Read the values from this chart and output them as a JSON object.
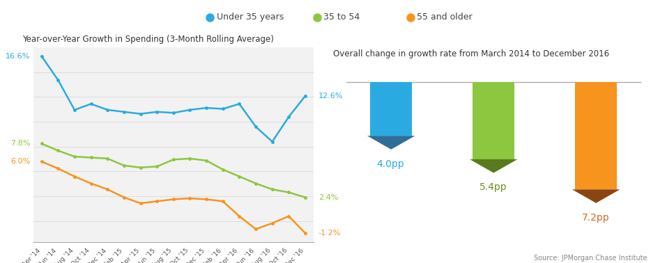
{
  "title_left": "Year-over-Year Growth in Spending (3-Month Rolling Average)",
  "title_right": "Overall change in growth rate from March 2014 to December 2016",
  "source": "Source: JPMorgan Chase Institute",
  "legend_labels": [
    "Under 35 years",
    "35 to 54",
    "55 and older"
  ],
  "legend_colors": [
    "#29ABE2",
    "#8DC63F",
    "#F7941D"
  ],
  "line_colors": [
    "#29ABE2",
    "#8DC63F",
    "#F7941D"
  ],
  "x_labels": [
    "Apr '14",
    "Jun '14",
    "Aug '14",
    "Oct '14",
    "Dec '14",
    "Feb '15",
    "Apr '15",
    "Jun '15",
    "Aug '15",
    "Oct '15",
    "Dec '15",
    "Feb '16",
    "Apr '16",
    "Jun '16",
    "Aug '16",
    "Oct '16",
    "Dec '16"
  ],
  "blue_data": [
    16.6,
    14.2,
    11.2,
    11.8,
    11.2,
    11.0,
    10.8,
    11.0,
    10.9,
    11.2,
    11.4,
    11.3,
    11.8,
    9.5,
    8.0,
    10.5,
    12.6
  ],
  "green_data": [
    7.8,
    7.1,
    6.5,
    6.4,
    6.3,
    5.6,
    5.4,
    5.5,
    6.2,
    6.3,
    6.1,
    5.2,
    4.5,
    3.8,
    3.2,
    2.9,
    2.4
  ],
  "orange_data": [
    6.0,
    5.3,
    4.5,
    3.8,
    3.2,
    2.4,
    1.8,
    2.0,
    2.2,
    2.3,
    2.2,
    2.0,
    0.5,
    -0.8,
    -0.2,
    0.5,
    -1.2
  ],
  "start_labels": [
    "16.6%",
    "7.8%",
    "6.0%"
  ],
  "end_labels": [
    "12.6%",
    "2.4%",
    "-1.2%"
  ],
  "start_label_colors": [
    "#29ABE2",
    "#8DC63F",
    "#F7941D"
  ],
  "end_label_colors": [
    "#29ABE2",
    "#8DC63F",
    "#F7941D"
  ],
  "bar_values": [
    4.0,
    5.4,
    7.2
  ],
  "bar_colors": [
    "#29ABE2",
    "#8DC63F",
    "#F7941D"
  ],
  "bar_tip_colors": [
    "#2E6E99",
    "#5A7A1E",
    "#8B4513"
  ],
  "bar_labels": [
    "4.0pp",
    "5.4pp",
    "7.2pp"
  ],
  "bar_label_colors": [
    "#29ABE2",
    "#6B8E23",
    "#D2691E"
  ],
  "bg_color": "#FFFFFF",
  "panel_bg": "#F2F2F2",
  "grid_color": "#DDDDDD"
}
